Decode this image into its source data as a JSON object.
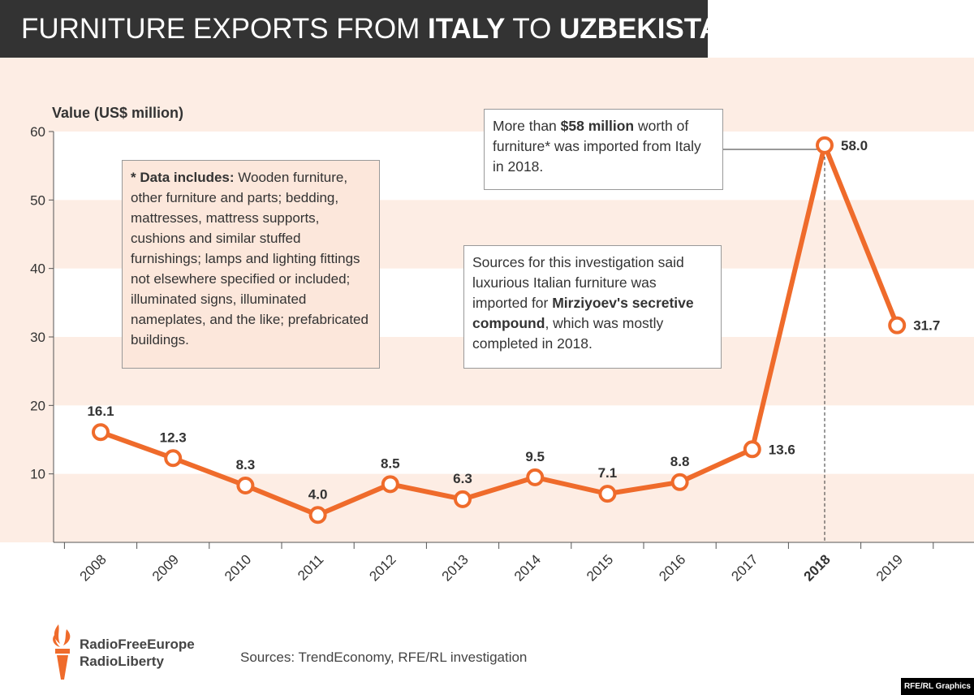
{
  "title": {
    "part1": "FURNITURE EXPORTS FROM ",
    "bold1": "ITALY",
    "part2": " TO ",
    "bold2": "UZBEKISTAN"
  },
  "colors": {
    "line": "#ef6b2b",
    "band": "#fdede4",
    "title_bg": "#333333"
  },
  "chart_data": {
    "type": "line",
    "ylabel": "Value (US$ million)",
    "ylim": [
      0,
      60
    ],
    "yticks": [
      10,
      20,
      30,
      40,
      50,
      60
    ],
    "categories": [
      "2008",
      "2009",
      "2010",
      "2011",
      "2012",
      "2013",
      "2014",
      "2015",
      "2016",
      "2017",
      "2018",
      "2019"
    ],
    "values": [
      16.1,
      12.3,
      8.3,
      4.0,
      8.5,
      6.3,
      9.5,
      7.1,
      8.8,
      13.6,
      58.0,
      31.7
    ],
    "labels": [
      "16.1",
      "12.3",
      "8.3",
      "4.0",
      "8.5",
      "6.3",
      "9.5",
      "7.1",
      "8.8",
      "13.6",
      "58.0",
      "31.7"
    ],
    "highlight_category": "2018"
  },
  "note": {
    "bold": "* Data includes:",
    "text": " Wooden furniture, other furniture and parts; bedding, mattresses, mattress supports, cushions and similar stuffed furnishings; lamps and lighting fittings not elsewhere specified or included; illuminated signs, illuminated nameplates, and the like; prefabricated buildings."
  },
  "callout58": {
    "t1": "More than ",
    "bold": "$58 million",
    "t2": " worth of furniture* was imported from Italy in 2018."
  },
  "sourcesbox": {
    "t1": "Sources for this investigation said luxurious Italian furniture was imported for ",
    "bold": "Mirziyoev's secretive compound",
    "t2": ", which was mostly completed in 2018."
  },
  "logo": {
    "line1": "RadioFreeEurope",
    "line2": "RadioLiberty"
  },
  "sources": "Sources: TrendEconomy, RFE/RL investigation",
  "credit": "RFE/RL Graphics"
}
